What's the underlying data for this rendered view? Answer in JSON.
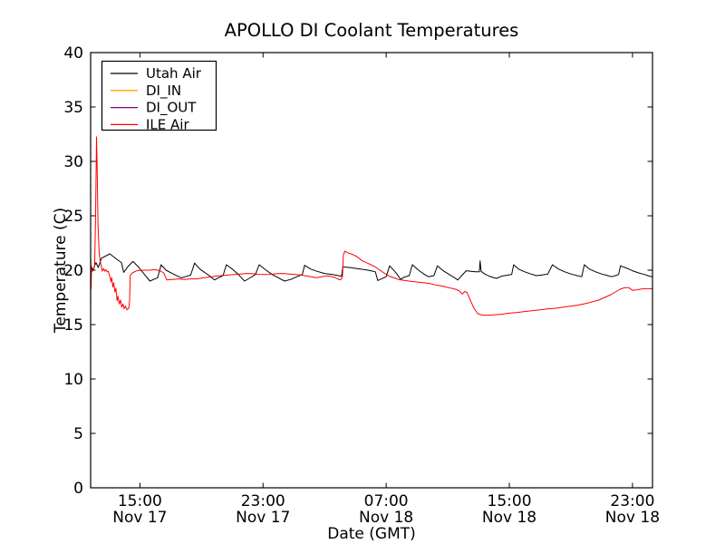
{
  "figure": {
    "background": "#ffffff",
    "spine_color": "#000000",
    "text_color": "#000000"
  },
  "chart_data": {
    "type": "line",
    "title": "APOLLO DI Coolant Temperatures",
    "xlabel": "Date (GMT)",
    "ylabel": "Temperature (C)",
    "grid": false,
    "ylim": [
      0,
      40
    ],
    "yticks": [
      0,
      5,
      10,
      15,
      20,
      25,
      30,
      35,
      40
    ],
    "x_unit": "hours since Nov 17 00:00 GMT",
    "xlim": [
      11.8,
      48.3
    ],
    "xticks": [
      {
        "hour": 15,
        "time": "15:00",
        "date": "Nov 17"
      },
      {
        "hour": 23,
        "time": "23:00",
        "date": "Nov 17"
      },
      {
        "hour": 31,
        "time": "07:00",
        "date": "Nov 18"
      },
      {
        "hour": 39,
        "time": "15:00",
        "date": "Nov 18"
      },
      {
        "hour": 47,
        "time": "23:00",
        "date": "Nov 18"
      }
    ],
    "legend": {
      "position": "upper-left",
      "entries": [
        "Utah Air",
        "DI_IN",
        "DI_OUT",
        "ILE Air"
      ]
    },
    "series": [
      {
        "name": "Utah Air",
        "color": "#000000",
        "points": [
          [
            11.82,
            20.4
          ],
          [
            11.95,
            20.0
          ],
          [
            12.15,
            20.7
          ],
          [
            12.3,
            20.25
          ],
          [
            12.5,
            21.1
          ],
          [
            13.05,
            21.5
          ],
          [
            13.5,
            21.0
          ],
          [
            13.8,
            20.7
          ],
          [
            13.95,
            19.8
          ],
          [
            14.2,
            20.3
          ],
          [
            14.55,
            20.8
          ],
          [
            14.9,
            20.3
          ],
          [
            15.3,
            19.6
          ],
          [
            15.65,
            19.0
          ],
          [
            15.9,
            19.15
          ],
          [
            16.15,
            19.3
          ],
          [
            16.38,
            20.5
          ],
          [
            16.7,
            20.0
          ],
          [
            17.1,
            19.7
          ],
          [
            17.45,
            19.45
          ],
          [
            17.7,
            19.3
          ],
          [
            17.95,
            19.4
          ],
          [
            18.3,
            19.55
          ],
          [
            18.55,
            20.65
          ],
          [
            18.9,
            20.1
          ],
          [
            19.3,
            19.7
          ],
          [
            19.6,
            19.4
          ],
          [
            19.85,
            19.1
          ],
          [
            20.1,
            19.3
          ],
          [
            20.4,
            19.5
          ],
          [
            20.62,
            20.5
          ],
          [
            21.0,
            20.1
          ],
          [
            21.4,
            19.6
          ],
          [
            21.8,
            19.0
          ],
          [
            22.1,
            19.25
          ],
          [
            22.5,
            19.6
          ],
          [
            22.75,
            20.5
          ],
          [
            23.2,
            20.0
          ],
          [
            23.6,
            19.6
          ],
          [
            24.0,
            19.3
          ],
          [
            24.4,
            19.0
          ],
          [
            24.8,
            19.15
          ],
          [
            25.2,
            19.4
          ],
          [
            25.55,
            19.6
          ],
          [
            25.7,
            20.45
          ],
          [
            26.1,
            20.1
          ],
          [
            26.5,
            19.9
          ],
          [
            27.0,
            19.7
          ],
          [
            27.5,
            19.6
          ],
          [
            27.9,
            19.5
          ],
          [
            28.1,
            19.45
          ],
          [
            28.18,
            20.3
          ],
          [
            28.6,
            20.25
          ],
          [
            29.1,
            20.15
          ],
          [
            29.6,
            20.05
          ],
          [
            30.0,
            19.95
          ],
          [
            30.3,
            19.85
          ],
          [
            30.45,
            19.05
          ],
          [
            30.7,
            19.2
          ],
          [
            31.0,
            19.4
          ],
          [
            31.22,
            20.4
          ],
          [
            31.55,
            19.9
          ],
          [
            31.8,
            19.45
          ],
          [
            31.94,
            19.15
          ],
          [
            32.15,
            19.35
          ],
          [
            32.5,
            19.5
          ],
          [
            32.7,
            20.5
          ],
          [
            33.1,
            20.0
          ],
          [
            33.5,
            19.6
          ],
          [
            33.76,
            19.4
          ],
          [
            34.1,
            19.5
          ],
          [
            34.33,
            20.4
          ],
          [
            34.7,
            19.95
          ],
          [
            35.1,
            19.6
          ],
          [
            35.45,
            19.3
          ],
          [
            35.65,
            19.1
          ],
          [
            35.9,
            19.5
          ],
          [
            36.2,
            19.95
          ],
          [
            36.5,
            19.9
          ],
          [
            36.8,
            19.85
          ],
          [
            37.05,
            19.85
          ],
          [
            37.1,
            20.85
          ],
          [
            37.16,
            19.9
          ],
          [
            37.4,
            19.65
          ],
          [
            37.7,
            19.45
          ],
          [
            38.0,
            19.3
          ],
          [
            38.18,
            19.25
          ],
          [
            38.5,
            19.45
          ],
          [
            38.9,
            19.55
          ],
          [
            39.15,
            19.6
          ],
          [
            39.28,
            20.5
          ],
          [
            39.6,
            20.1
          ],
          [
            40.0,
            19.85
          ],
          [
            40.4,
            19.65
          ],
          [
            40.75,
            19.5
          ],
          [
            41.1,
            19.55
          ],
          [
            41.5,
            19.65
          ],
          [
            41.8,
            20.5
          ],
          [
            42.2,
            20.1
          ],
          [
            42.6,
            19.85
          ],
          [
            43.0,
            19.65
          ],
          [
            43.4,
            19.5
          ],
          [
            43.7,
            19.4
          ],
          [
            43.87,
            20.5
          ],
          [
            44.2,
            20.1
          ],
          [
            44.6,
            19.85
          ],
          [
            45.0,
            19.65
          ],
          [
            45.4,
            19.5
          ],
          [
            45.65,
            19.4
          ],
          [
            45.9,
            19.5
          ],
          [
            46.1,
            19.6
          ],
          [
            46.22,
            20.4
          ],
          [
            46.6,
            20.2
          ],
          [
            47.0,
            19.95
          ],
          [
            47.4,
            19.75
          ],
          [
            47.8,
            19.6
          ],
          [
            48.1,
            19.45
          ],
          [
            48.29,
            19.4
          ]
        ]
      },
      {
        "name": "DI_IN",
        "color": "#ffa500",
        "points": []
      },
      {
        "name": "DI_OUT",
        "color": "#800080",
        "points": []
      },
      {
        "name": "ILE Air",
        "color": "#ff0000",
        "points": [
          [
            11.8,
            16.2
          ],
          [
            11.81,
            21.0
          ],
          [
            11.83,
            18.3
          ],
          [
            11.86,
            20.1
          ],
          [
            11.92,
            19.9
          ],
          [
            12.0,
            20.1
          ],
          [
            12.06,
            20.4
          ],
          [
            12.12,
            24.5
          ],
          [
            12.18,
            32.25
          ],
          [
            12.22,
            30.0
          ],
          [
            12.28,
            24.0
          ],
          [
            12.35,
            21.8
          ],
          [
            12.42,
            20.8
          ],
          [
            12.5,
            20.4
          ],
          [
            12.56,
            19.9
          ],
          [
            12.65,
            20.15
          ],
          [
            12.72,
            19.9
          ],
          [
            12.8,
            20.05
          ],
          [
            12.88,
            19.85
          ],
          [
            12.95,
            19.9
          ],
          [
            13.02,
            19.55
          ],
          [
            13.08,
            19.25
          ],
          [
            13.12,
            18.95
          ],
          [
            13.17,
            19.3
          ],
          [
            13.24,
            18.45
          ],
          [
            13.3,
            18.85
          ],
          [
            13.38,
            18.0
          ],
          [
            13.44,
            18.35
          ],
          [
            13.52,
            17.2
          ],
          [
            13.58,
            17.6
          ],
          [
            13.66,
            16.9
          ],
          [
            13.74,
            17.25
          ],
          [
            13.82,
            16.6
          ],
          [
            13.9,
            16.9
          ],
          [
            13.98,
            16.45
          ],
          [
            14.06,
            16.7
          ],
          [
            14.16,
            16.35
          ],
          [
            14.28,
            16.5
          ],
          [
            14.33,
            17.2
          ],
          [
            14.37,
            19.5
          ],
          [
            14.5,
            19.75
          ],
          [
            14.8,
            19.95
          ],
          [
            15.2,
            20.0
          ],
          [
            15.6,
            20.0
          ],
          [
            16.0,
            20.05
          ],
          [
            16.3,
            19.95
          ],
          [
            16.55,
            19.75
          ],
          [
            16.65,
            19.4
          ],
          [
            16.75,
            19.1
          ],
          [
            17.1,
            19.15
          ],
          [
            17.5,
            19.2
          ],
          [
            17.9,
            19.15
          ],
          [
            18.3,
            19.2
          ],
          [
            18.7,
            19.2
          ],
          [
            19.1,
            19.3
          ],
          [
            19.5,
            19.35
          ],
          [
            19.9,
            19.45
          ],
          [
            20.3,
            19.5
          ],
          [
            20.7,
            19.55
          ],
          [
            21.1,
            19.6
          ],
          [
            21.5,
            19.65
          ],
          [
            21.9,
            19.7
          ],
          [
            22.3,
            19.68
          ],
          [
            22.7,
            19.62
          ],
          [
            23.1,
            19.6
          ],
          [
            23.5,
            19.62
          ],
          [
            23.9,
            19.68
          ],
          [
            24.3,
            19.7
          ],
          [
            24.7,
            19.65
          ],
          [
            25.1,
            19.6
          ],
          [
            25.5,
            19.55
          ],
          [
            25.9,
            19.45
          ],
          [
            26.2,
            19.38
          ],
          [
            26.45,
            19.32
          ],
          [
            26.8,
            19.38
          ],
          [
            27.1,
            19.48
          ],
          [
            27.35,
            19.45
          ],
          [
            27.6,
            19.35
          ],
          [
            27.85,
            19.2
          ],
          [
            28.0,
            19.12
          ],
          [
            28.1,
            19.2
          ],
          [
            28.16,
            19.45
          ],
          [
            28.22,
            21.4
          ],
          [
            28.32,
            21.75
          ],
          [
            28.5,
            21.6
          ],
          [
            28.8,
            21.45
          ],
          [
            29.1,
            21.25
          ],
          [
            29.45,
            20.85
          ],
          [
            29.7,
            20.7
          ],
          [
            30.0,
            20.5
          ],
          [
            30.3,
            20.3
          ],
          [
            30.6,
            20.0
          ],
          [
            30.9,
            19.7
          ],
          [
            31.2,
            19.45
          ],
          [
            31.5,
            19.3
          ],
          [
            31.8,
            19.15
          ],
          [
            32.2,
            19.05
          ],
          [
            32.6,
            18.98
          ],
          [
            33.0,
            18.92
          ],
          [
            33.4,
            18.85
          ],
          [
            33.8,
            18.78
          ],
          [
            34.2,
            18.65
          ],
          [
            34.6,
            18.55
          ],
          [
            34.9,
            18.45
          ],
          [
            35.2,
            18.35
          ],
          [
            35.5,
            18.25
          ],
          [
            35.75,
            18.1
          ],
          [
            35.94,
            17.8
          ],
          [
            36.1,
            18.05
          ],
          [
            36.25,
            17.95
          ],
          [
            36.45,
            17.3
          ],
          [
            36.7,
            16.5
          ],
          [
            36.95,
            16.0
          ],
          [
            37.2,
            15.88
          ],
          [
            37.6,
            15.85
          ],
          [
            38.0,
            15.9
          ],
          [
            38.5,
            15.95
          ],
          [
            39.0,
            16.05
          ],
          [
            39.5,
            16.12
          ],
          [
            40.0,
            16.2
          ],
          [
            40.5,
            16.28
          ],
          [
            41.0,
            16.35
          ],
          [
            41.5,
            16.45
          ],
          [
            42.0,
            16.5
          ],
          [
            42.5,
            16.6
          ],
          [
            43.0,
            16.7
          ],
          [
            43.5,
            16.8
          ],
          [
            44.0,
            16.95
          ],
          [
            44.4,
            17.1
          ],
          [
            44.8,
            17.25
          ],
          [
            45.2,
            17.5
          ],
          [
            45.6,
            17.75
          ],
          [
            45.9,
            18.0
          ],
          [
            46.2,
            18.25
          ],
          [
            46.5,
            18.4
          ],
          [
            46.75,
            18.4
          ],
          [
            47.0,
            18.15
          ],
          [
            47.3,
            18.2
          ],
          [
            47.7,
            18.3
          ],
          [
            48.29,
            18.3
          ]
        ]
      }
    ]
  }
}
